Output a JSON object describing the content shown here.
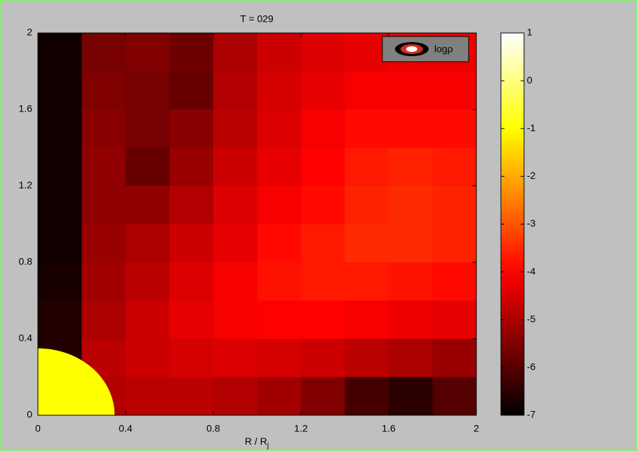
{
  "chart_data": {
    "type": "heatmap",
    "title": "T = 029",
    "xlabel": "R / R",
    "xlabel_sub": "j",
    "x": [
      0.1,
      0.3,
      0.5,
      0.7,
      0.9,
      1.1,
      1.3,
      1.5,
      1.7,
      1.9
    ],
    "y": [
      1.9,
      1.7,
      1.5,
      1.3,
      1.1,
      0.9,
      0.7,
      0.5,
      0.3,
      0.1
    ],
    "z": [
      [
        -6.8,
        -5.6,
        -5.5,
        -5.7,
        -5.0,
        -4.6,
        -4.4,
        -4.3,
        -4.2,
        -4.2
      ],
      [
        -6.8,
        -5.5,
        -5.6,
        -5.8,
        -4.9,
        -4.5,
        -4.3,
        -4.1,
        -4.1,
        -4.1
      ],
      [
        -6.8,
        -5.4,
        -5.6,
        -5.4,
        -4.8,
        -4.4,
        -4.1,
        -3.9,
        -3.9,
        -3.9
      ],
      [
        -6.8,
        -5.3,
        -5.8,
        -5.2,
        -4.6,
        -4.3,
        -4.0,
        -3.7,
        -3.6,
        -3.7
      ],
      [
        -6.8,
        -5.3,
        -5.3,
        -4.9,
        -4.4,
        -4.1,
        -3.9,
        -3.6,
        -3.5,
        -3.6
      ],
      [
        -6.8,
        -5.2,
        -5.0,
        -4.6,
        -4.3,
        -3.9,
        -3.7,
        -3.5,
        -3.5,
        -3.6
      ],
      [
        -6.7,
        -5.1,
        -4.8,
        -4.4,
        -4.1,
        -3.8,
        -3.7,
        -3.7,
        -3.8,
        -3.9
      ],
      [
        -6.6,
        -5.0,
        -4.6,
        -4.3,
        -4.1,
        -4.0,
        -4.0,
        -4.1,
        -4.2,
        -4.3
      ],
      [
        -6.6,
        -4.8,
        -4.6,
        -4.5,
        -4.4,
        -4.5,
        -4.6,
        -4.8,
        -5.0,
        -5.2
      ],
      [
        -6.6,
        -4.9,
        -4.8,
        -4.8,
        -4.9,
        -5.1,
        -5.5,
        -6.2,
        -6.5,
        -6.0
      ]
    ],
    "body": {
      "radius": 0.35,
      "value": -1
    },
    "colormap": "hot",
    "xlim": [
      0,
      2
    ],
    "xticks": [
      0,
      0.4,
      0.8,
      1.2,
      1.6,
      2
    ],
    "ylim": [
      0,
      2
    ],
    "yticks": [
      0,
      0.4,
      0.8,
      1.2,
      1.6,
      2
    ],
    "clim": [
      -7,
      1
    ],
    "cticks": [
      -7,
      -6,
      -5,
      -4,
      -3,
      -2,
      -1,
      0,
      1
    ],
    "legend": "logρ",
    "legend_loc": "upper right"
  }
}
